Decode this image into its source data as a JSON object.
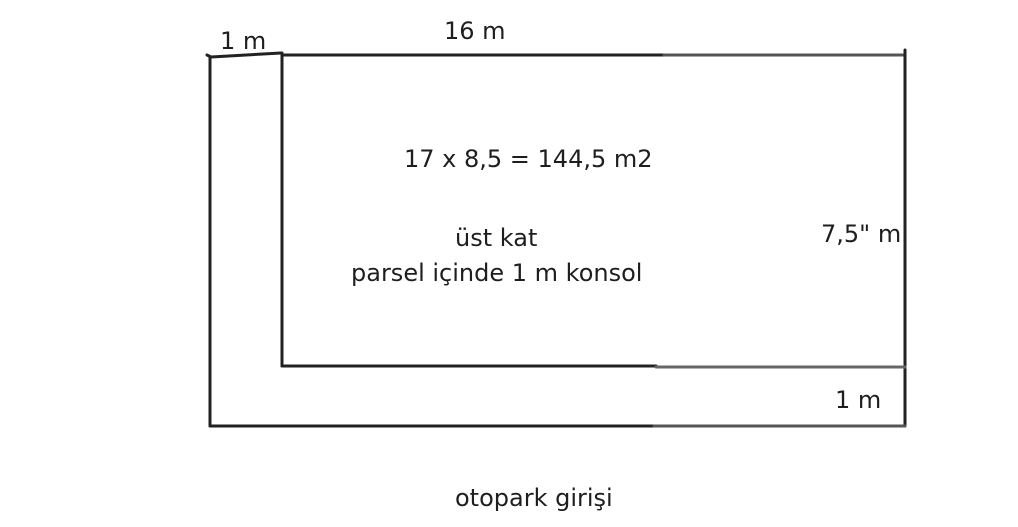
{
  "drawing": {
    "dimensions": {
      "top_small": "1 m",
      "top_length": "16 m",
      "right_height": "7,5\" m",
      "bottom_small": "1 m"
    },
    "area_formula": "17 x 8,5 = 144,5 m2",
    "floor_label": "üst kat",
    "cantilever_note": "parsel içinde 1 m konsol",
    "entrance_label": "otopark girişi",
    "line_color": "#222222"
  }
}
